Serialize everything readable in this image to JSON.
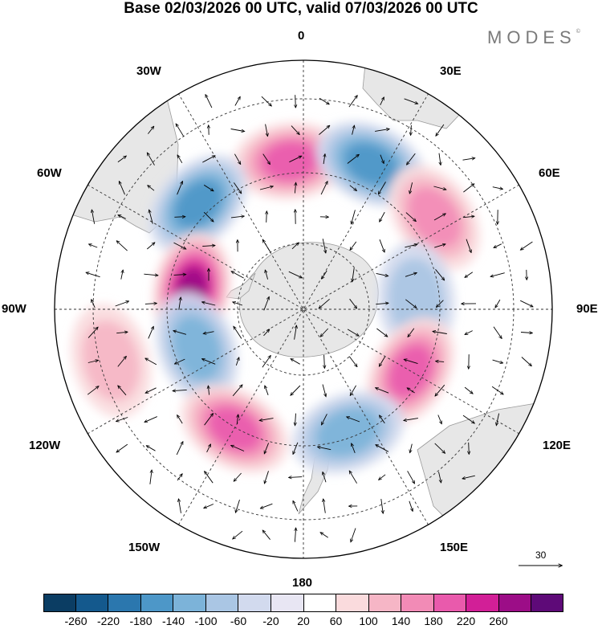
{
  "title": "Base 02/03/2026 00 UTC, valid 07/03/2026 00 UTC",
  "brand": {
    "text": "MODES",
    "mark": "©"
  },
  "longitude_labels": {
    "top": "0",
    "bottom": "180",
    "left": "90W",
    "right": "90E",
    "upper_left_1": "30W",
    "upper_left_2": "60W",
    "upper_right_1": "30E",
    "upper_right_2": "60E",
    "lower_left_1": "120W",
    "lower_left_2": "150W",
    "lower_right_1": "120E",
    "lower_right_2": "150E"
  },
  "reference_vector": {
    "label": "30"
  },
  "colorbar": {
    "ticks": [
      "-260",
      "-220",
      "-180",
      "-140",
      "-100",
      "-60",
      "-20",
      "20",
      "60",
      "100",
      "140",
      "180",
      "220",
      "260"
    ],
    "colors": [
      "#0b3d63",
      "#14598d",
      "#2b77ae",
      "#4d97c8",
      "#7cb3d9",
      "#aac6e4",
      "#d2daee",
      "#e8e6f3",
      "#ffffff",
      "#fadbdd",
      "#f6b6c6",
      "#f28bb6",
      "#e95aac",
      "#d21f97",
      "#9c0d87",
      "#5e0a78"
    ]
  },
  "field_anomalies": [
    {
      "kind": "positive",
      "sign": "+",
      "level": 3,
      "centroid_lon": "5W",
      "centroid_lat": "-45"
    },
    {
      "kind": "negative",
      "sign": "-",
      "level": 3,
      "centroid_lon": "25E",
      "centroid_lat": "-42"
    },
    {
      "kind": "negative",
      "sign": "-",
      "level": 3,
      "centroid_lon": "45W",
      "centroid_lat": "-45"
    },
    {
      "kind": "positive",
      "sign": "+",
      "level": 2,
      "centroid_lon": "55E",
      "centroid_lat": "-42"
    },
    {
      "kind": "positive",
      "sign": "+",
      "level": 5,
      "centroid_lon": "80W",
      "centroid_lat": "-55"
    },
    {
      "kind": "negative",
      "sign": "-",
      "level": 1,
      "centroid_lon": "85E",
      "centroid_lat": "-55"
    },
    {
      "kind": "negative",
      "sign": "-",
      "level": 2,
      "centroid_lon": "110W",
      "centroid_lat": "-55"
    },
    {
      "kind": "positive",
      "sign": "+",
      "level": 3,
      "centroid_lon": "120E",
      "centroid_lat": "-52"
    },
    {
      "kind": "negative",
      "sign": "-",
      "level": 2,
      "centroid_lon": "160E",
      "centroid_lat": "-50"
    },
    {
      "kind": "positive",
      "sign": "+",
      "level": 3,
      "centroid_lon": "150W",
      "centroid_lat": "-48"
    },
    {
      "kind": "positive",
      "sign": "+",
      "level": 1,
      "centroid_lon": "105W",
      "centroid_lat": "-32"
    }
  ]
}
